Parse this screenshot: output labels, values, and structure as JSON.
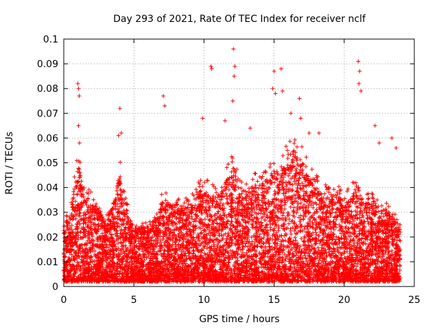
{
  "chart_data": {
    "type": "scatter",
    "title": "Day 293 of 2021, Rate Of TEC Index for receiver nclf",
    "xlabel": "GPS time / hours",
    "ylabel": "ROTI / TECUs",
    "xlim": [
      0,
      25
    ],
    "ylim": [
      0,
      0.1
    ],
    "xticks": [
      "0",
      "5",
      "10",
      "15",
      "20",
      "25"
    ],
    "yticks": [
      "0",
      "0.01",
      "0.02",
      "0.03",
      "0.04",
      "0.05",
      "0.06",
      "0.07",
      "0.08",
      "0.09",
      "0.1"
    ],
    "xtick_values": [
      0,
      5,
      10,
      15,
      20,
      25
    ],
    "ytick_values": [
      0,
      0.01,
      0.02,
      0.03,
      0.04,
      0.05,
      0.06,
      0.07,
      0.08,
      0.09,
      0.1
    ],
    "grid": true,
    "marker": "plus",
    "color": "#ff0000",
    "x": [
      1.0,
      1.05,
      1.1,
      1.05,
      1.12,
      4.0,
      4.1,
      3.9,
      7.1,
      7.2,
      10.5,
      10.55,
      12.1,
      12.2,
      12.15,
      12.05,
      14.9,
      15.0,
      15.1,
      15.5,
      15.6,
      16.8,
      16.9,
      21.0,
      21.1,
      21.05,
      21.2,
      9.9,
      13.3,
      16.2,
      18.2,
      22.2,
      22.5,
      23.4,
      23.7,
      11.5,
      17.5
    ],
    "y": [
      0.082,
      0.08,
      0.077,
      0.065,
      0.058,
      0.072,
      0.062,
      0.061,
      0.077,
      0.073,
      0.089,
      0.088,
      0.096,
      0.089,
      0.085,
      0.075,
      0.08,
      0.087,
      0.078,
      0.088,
      0.079,
      0.076,
      0.068,
      0.091,
      0.087,
      0.082,
      0.079,
      0.068,
      0.064,
      0.07,
      0.062,
      0.065,
      0.058,
      0.06,
      0.056,
      0.067,
      0.062
    ],
    "dense_segments": [
      [
        0.0,
        0.014
      ],
      [
        0.5,
        0.018
      ],
      [
        1.0,
        0.03
      ],
      [
        1.5,
        0.022
      ],
      [
        2.0,
        0.02
      ],
      [
        2.5,
        0.018
      ],
      [
        3.0,
        0.015
      ],
      [
        3.5,
        0.02
      ],
      [
        4.0,
        0.028
      ],
      [
        4.5,
        0.018
      ],
      [
        5.0,
        0.013
      ],
      [
        5.5,
        0.014
      ],
      [
        6.0,
        0.014
      ],
      [
        6.5,
        0.016
      ],
      [
        7.0,
        0.02
      ],
      [
        7.5,
        0.02
      ],
      [
        8.0,
        0.018
      ],
      [
        8.5,
        0.02
      ],
      [
        9.0,
        0.019
      ],
      [
        9.5,
        0.022
      ],
      [
        10.0,
        0.024
      ],
      [
        10.5,
        0.022
      ],
      [
        11.0,
        0.022
      ],
      [
        11.5,
        0.025
      ],
      [
        12.0,
        0.028
      ],
      [
        12.5,
        0.024
      ],
      [
        13.0,
        0.022
      ],
      [
        13.5,
        0.024
      ],
      [
        14.0,
        0.025
      ],
      [
        14.5,
        0.026
      ],
      [
        15.0,
        0.028
      ],
      [
        15.5,
        0.028
      ],
      [
        16.0,
        0.032
      ],
      [
        16.5,
        0.034
      ],
      [
        17.0,
        0.03
      ],
      [
        17.5,
        0.026
      ],
      [
        18.0,
        0.024
      ],
      [
        18.5,
        0.022
      ],
      [
        19.0,
        0.022
      ],
      [
        19.5,
        0.022
      ],
      [
        20.0,
        0.02
      ],
      [
        20.5,
        0.022
      ],
      [
        21.0,
        0.024
      ],
      [
        21.5,
        0.02
      ],
      [
        22.0,
        0.02
      ],
      [
        22.5,
        0.018
      ],
      [
        23.0,
        0.018
      ],
      [
        23.5,
        0.016
      ],
      [
        24.0,
        0.014
      ]
    ]
  }
}
